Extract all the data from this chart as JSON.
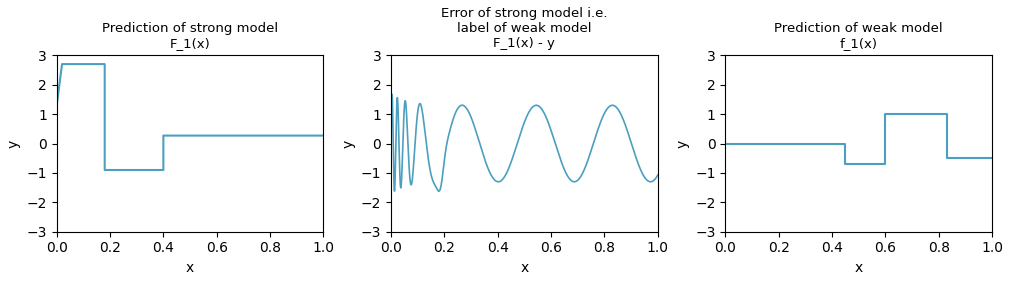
{
  "title1": "Prediction of strong model\nF_1(x)",
  "title2": "Error of strong model i.e.\nlabel of weak model\nF_1(x) - y",
  "title3": "Prediction of weak model\nf_1(x)",
  "xlabel": "x",
  "ylabel": "y",
  "ylim": [
    -3,
    3
  ],
  "xlim": [
    0.0,
    1.0
  ],
  "line_color": "#4c9fbe",
  "bg_color": "#ffffff",
  "plot1_segments": [
    [
      0.0,
      1.3
    ],
    [
      0.02,
      2.7
    ],
    [
      0.18,
      2.7
    ],
    [
      0.18,
      -0.9
    ],
    [
      0.4,
      -0.9
    ],
    [
      0.4,
      0.27
    ],
    [
      1.0,
      0.27
    ]
  ],
  "plot3_segments": [
    [
      0.0,
      0.0
    ],
    [
      0.45,
      0.0
    ],
    [
      0.45,
      -0.7
    ],
    [
      0.6,
      -0.7
    ],
    [
      0.6,
      1.0
    ],
    [
      0.83,
      1.0
    ],
    [
      0.83,
      -0.5
    ],
    [
      1.0,
      -0.5
    ]
  ],
  "chirp_base_freq": 3.5,
  "chirp_high_freq": 60,
  "chirp_decay": 18,
  "chirp_amp_base": 1.3,
  "chirp_amp_decay": 0.4
}
